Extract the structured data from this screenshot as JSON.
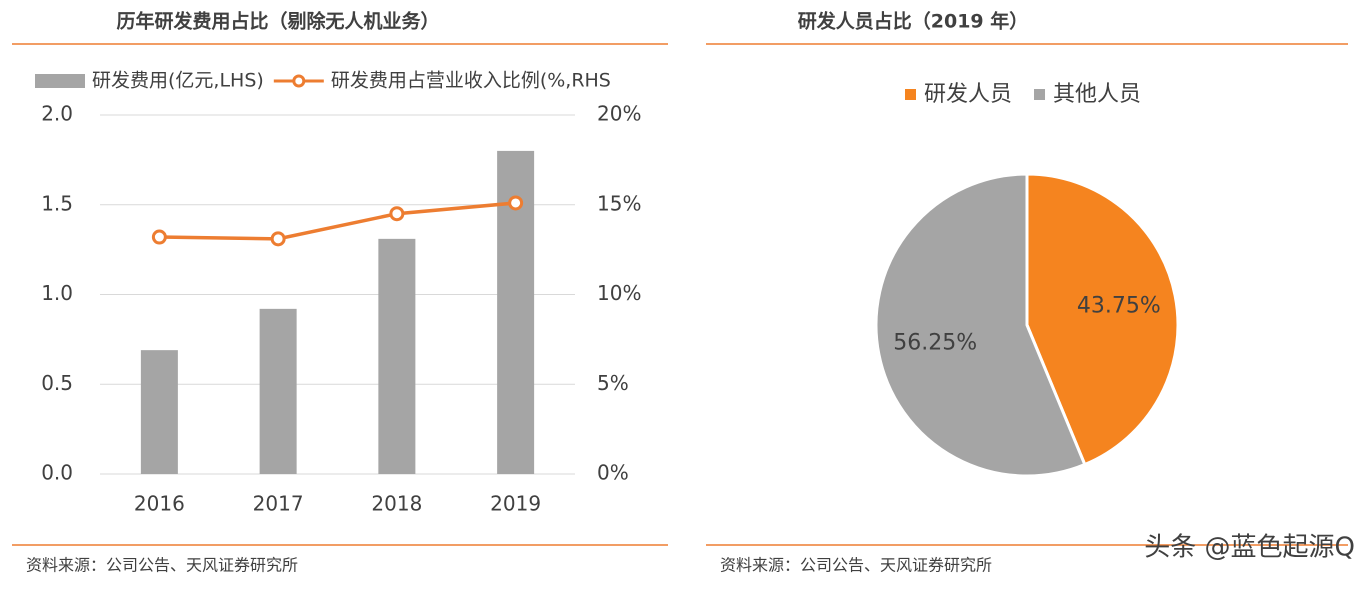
{
  "chart_data": [
    {
      "type": "bar",
      "title": "历年研发费用占比（剔除无人机业务）",
      "categories": [
        "2016",
        "2017",
        "2018",
        "2019"
      ],
      "series": [
        {
          "name": "研发费用(亿元,LHS)",
          "type": "bar",
          "color": "#a5a5a5",
          "values": [
            0.69,
            0.92,
            1.31,
            1.8
          ]
        },
        {
          "name": "研发费用占营业收入比例(%,RHS",
          "type": "line",
          "axis": "y2",
          "color": "#ed7d31",
          "values": [
            13.2,
            13.1,
            14.5,
            15.1
          ]
        }
      ],
      "ylim": [
        0,
        2
      ],
      "yticks": [
        {
          "value": 0,
          "label": "0.0"
        },
        0.5,
        {
          "value": 1,
          "label": "1.0"
        },
        1.5,
        {
          "value": 2,
          "label": "2.0"
        }
      ],
      "y2lim": [
        0,
        20
      ],
      "y2ticks": [
        {
          "value": 0,
          "label": "0%"
        },
        {
          "value": 5,
          "label": "5%"
        },
        {
          "value": 10,
          "label": "10%"
        },
        {
          "value": 15,
          "label": "15%"
        },
        {
          "value": 20,
          "label": "20%"
        }
      ],
      "grid": true,
      "legend": "top"
    },
    {
      "type": "pie",
      "title": "研发人员占比（2019 年）",
      "categories": [
        "研发人员",
        "其他人员"
      ],
      "values": [
        43.75,
        56.25
      ],
      "value_labels": [
        "43.75%",
        "56.25%"
      ],
      "colors": [
        "#f5841f",
        "#a5a5a5"
      ],
      "legend": "top"
    }
  ],
  "sources": [
    "资料来源：公司公告、天风证券研究所",
    "资料来源：公司公告、天风证券研究所"
  ],
  "watermark": "头条 @蓝色起源Q"
}
